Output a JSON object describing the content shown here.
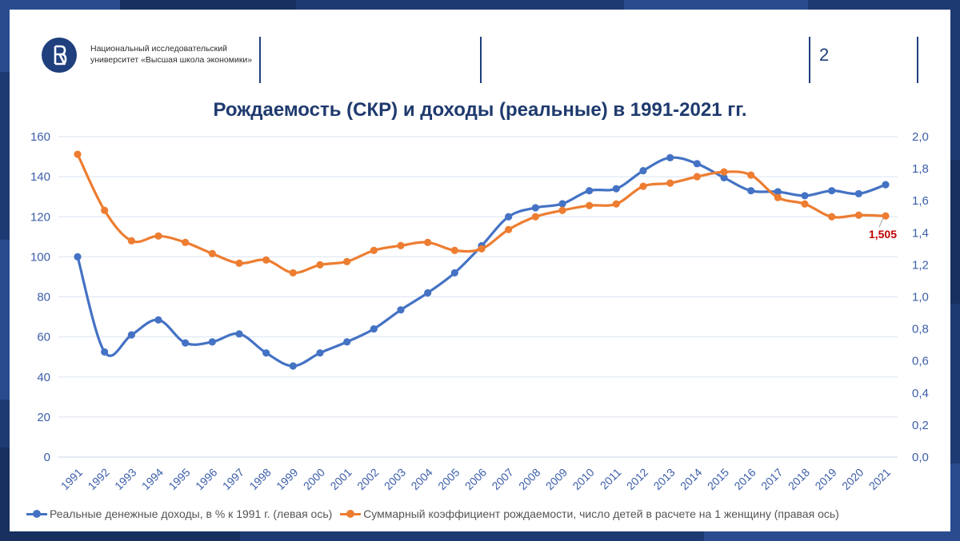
{
  "header": {
    "university": "Национальный исследовательский университет «Высшая школа экономики»",
    "logo_letter": "В",
    "page_number": "2"
  },
  "colors": {
    "income": "#4472c4",
    "fertility": "#ed7d31",
    "label_red": "#c00000",
    "axis_text": "#3b5ea8",
    "navy": "#1f3f7d"
  },
  "chart_data": {
    "type": "line",
    "title": "Рождаемость (СКР) и доходы (реальные) в 1991-2021 гг.",
    "categories": [
      "1991",
      "1992",
      "1993",
      "1994",
      "1995",
      "1996",
      "1997",
      "1998",
      "1999",
      "2000",
      "2001",
      "2002",
      "2003",
      "2004",
      "2005",
      "2006",
      "2007",
      "2008",
      "2009",
      "2010",
      "2011",
      "2012",
      "2013",
      "2014",
      "2015",
      "2016",
      "2017",
      "2018",
      "2019",
      "2020",
      "2021"
    ],
    "left_axis": {
      "min": 0,
      "max": 160,
      "step": 20,
      "ticks": [
        "0",
        "20",
        "40",
        "60",
        "80",
        "100",
        "120",
        "140",
        "160"
      ]
    },
    "right_axis": {
      "min": 0,
      "max": 2,
      "step": 0.2,
      "ticks": [
        "0,0",
        "0,2",
        "0,4",
        "0,6",
        "0,8",
        "1,0",
        "1,2",
        "1,4",
        "1,6",
        "1,8",
        "2,0"
      ]
    },
    "series": [
      {
        "name": "Реальные денежные доходы, в % к 1991 г. (левая ось)",
        "axis": "left",
        "values": [
          100,
          52.5,
          61,
          68.5,
          57,
          57.5,
          61.5,
          52,
          45.5,
          52,
          57.5,
          64,
          73.5,
          82,
          92,
          105.5,
          120,
          124.5,
          126.5,
          133,
          134,
          143,
          149.5,
          146.5,
          139.5,
          133,
          132.5,
          130.5,
          133,
          131.5,
          136
        ]
      },
      {
        "name": "Суммарный коэффициент рождаемости, число детей в расчете на 1 женщину (правая ось)",
        "axis": "right",
        "values": [
          1.89,
          1.54,
          1.35,
          1.38,
          1.34,
          1.27,
          1.21,
          1.23,
          1.15,
          1.2,
          1.22,
          1.29,
          1.32,
          1.34,
          1.29,
          1.3,
          1.42,
          1.5,
          1.54,
          1.57,
          1.58,
          1.69,
          1.71,
          1.75,
          1.78,
          1.76,
          1.62,
          1.58,
          1.5,
          1.51,
          1.505
        ]
      }
    ],
    "annotation": {
      "text": "1,505",
      "series": 1,
      "category": "2021"
    },
    "grid": true,
    "legend_position": "bottom"
  }
}
